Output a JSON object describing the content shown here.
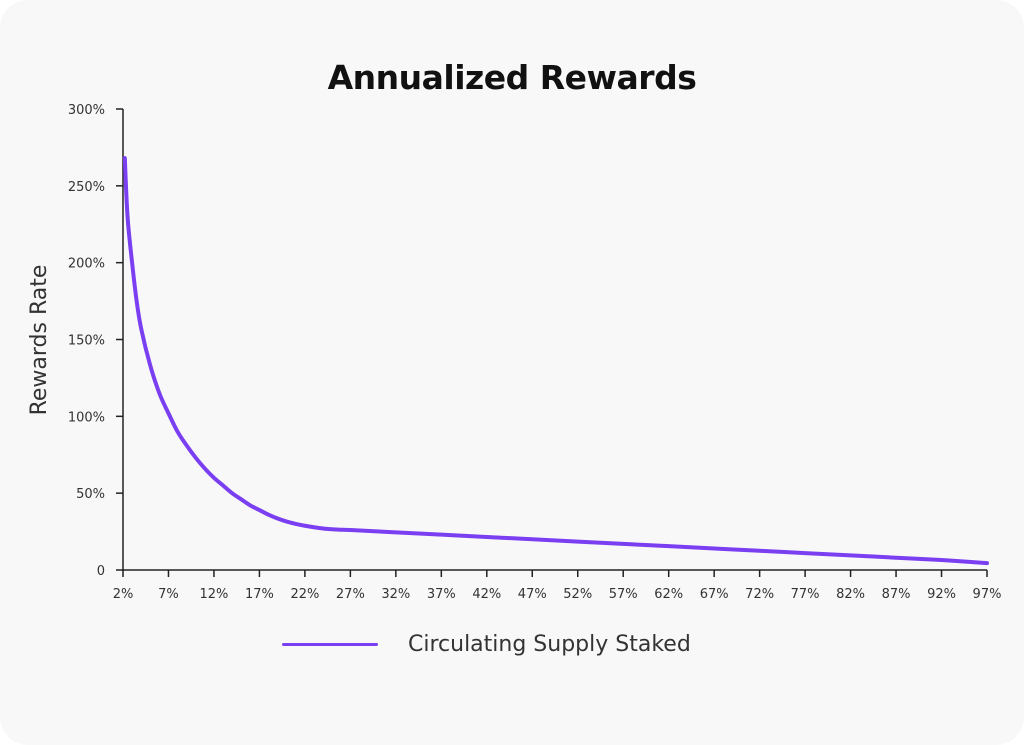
{
  "chart_data": {
    "type": "line",
    "title": "Annualized Rewards",
    "xlabel": "",
    "ylabel": "Rewards Rate",
    "x_tick_labels": [
      "2%",
      "7%",
      "12%",
      "17%",
      "22%",
      "27%",
      "32%",
      "37%",
      "42%",
      "47%",
      "52%",
      "57%",
      "62%",
      "67%",
      "72%",
      "77%",
      "82%",
      "87%",
      "92%",
      "97%"
    ],
    "y_tick_labels": [
      "0",
      "50%",
      "100%",
      "150%",
      "200%",
      "250%",
      "300%"
    ],
    "xlim": [
      2,
      97
    ],
    "ylim": [
      0,
      300
    ],
    "grid": false,
    "legend_position": "bottom-center",
    "series": [
      {
        "name": "Circulating Supply Staked",
        "color": "#7b3ff2",
        "x": [
          2.2,
          2.5,
          3,
          3.5,
          4,
          5,
          6,
          7,
          8,
          9,
          10,
          11,
          12,
          13,
          14,
          15,
          16,
          17,
          18,
          19,
          20,
          21,
          22,
          23,
          24,
          25,
          26,
          27,
          32,
          37,
          42,
          47,
          52,
          57,
          62,
          67,
          72,
          77,
          82,
          87,
          92,
          97
        ],
        "y": [
          268,
          230,
          200,
          175,
          157,
          133,
          115,
          102,
          90,
          81,
          73,
          66,
          60,
          55,
          50,
          46,
          42,
          39,
          36,
          33.5,
          31.5,
          30,
          28.8,
          27.8,
          27,
          26.5,
          26.2,
          26,
          24.5,
          23,
          21.5,
          20,
          18.5,
          17,
          15.5,
          14,
          12.5,
          11,
          9.5,
          8,
          6.5,
          4.5
        ]
      }
    ]
  }
}
